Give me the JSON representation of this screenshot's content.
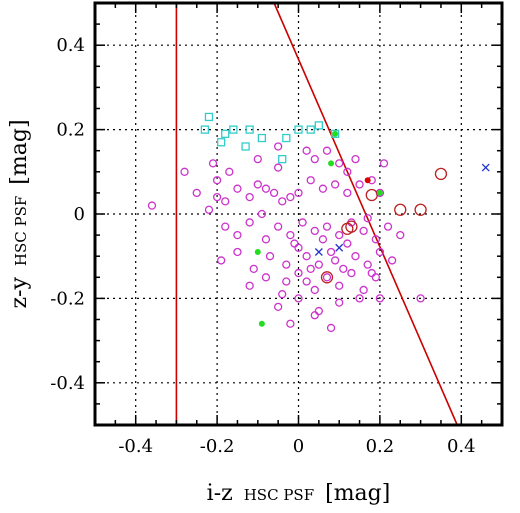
{
  "chart_data": {
    "type": "scatter",
    "xlabel": "i-z",
    "xlabel_sub": "HSC PSF",
    "xlabel_unit": "[mag]",
    "ylabel": "z-y",
    "ylabel_sub": "HSC PSF",
    "ylabel_unit": "[mag]",
    "xlim": [
      -0.5,
      0.5
    ],
    "ylim": [
      -0.5,
      0.5
    ],
    "xticks": [
      -0.4,
      -0.2,
      0,
      0.2,
      0.4
    ],
    "xtick_labels": [
      "-0.4",
      "-0.2",
      "0",
      "0.2",
      "0.4"
    ],
    "yticks": [
      -0.4,
      -0.2,
      0,
      0.2,
      0.4
    ],
    "ytick_labels": [
      "-0.4",
      "-0.2",
      "0",
      "0.2",
      "0.4"
    ],
    "grid": true,
    "lines": [
      {
        "color": "#cc0000",
        "points": [
          [
            -0.3,
            -0.5
          ],
          [
            -0.3,
            0.5
          ]
        ]
      },
      {
        "color": "#cc0000",
        "points": [
          [
            -0.06,
            0.5
          ],
          [
            0.39,
            -0.5
          ]
        ]
      }
    ],
    "series": [
      {
        "marker": "square",
        "color": "#33cccc",
        "size": 7,
        "points": [
          [
            -0.23,
            0.2
          ],
          [
            -0.22,
            0.23
          ],
          [
            -0.19,
            0.17
          ],
          [
            -0.18,
            0.19
          ],
          [
            -0.16,
            0.2
          ],
          [
            -0.13,
            0.16
          ],
          [
            -0.12,
            0.2
          ],
          [
            -0.09,
            0.18
          ],
          [
            -0.04,
            0.13
          ],
          [
            -0.03,
            0.18
          ],
          [
            0.0,
            0.2
          ],
          [
            0.03,
            0.2
          ],
          [
            0.05,
            0.21
          ],
          [
            0.09,
            0.19
          ]
        ]
      },
      {
        "marker": "open-circle",
        "color": "#cc33cc",
        "size": 7,
        "points": [
          [
            -0.36,
            0.02
          ],
          [
            -0.25,
            0.05
          ],
          [
            -0.22,
            0.01
          ],
          [
            -0.2,
            0.04
          ],
          [
            -0.18,
            0.03
          ],
          [
            -0.15,
            0.06
          ],
          [
            -0.12,
            0.04
          ],
          [
            -0.1,
            0.07
          ],
          [
            -0.08,
            0.06
          ],
          [
            -0.06,
            0.05
          ],
          [
            -0.04,
            0.03
          ],
          [
            -0.02,
            0.04
          ],
          [
            0.0,
            0.05
          ],
          [
            0.03,
            0.08
          ],
          [
            0.06,
            0.06
          ],
          [
            0.09,
            0.07
          ],
          [
            0.12,
            0.05
          ],
          [
            0.15,
            0.07
          ],
          [
            0.18,
            0.08
          ],
          [
            0.2,
            0.05
          ],
          [
            -0.28,
            0.1
          ],
          [
            -0.21,
            0.12
          ],
          [
            -0.17,
            0.1
          ],
          [
            -0.1,
            0.13
          ],
          [
            -0.05,
            0.11
          ],
          [
            0.04,
            0.13
          ],
          [
            0.07,
            0.15
          ],
          [
            0.1,
            0.12
          ],
          [
            0.14,
            0.13
          ],
          [
            0.21,
            0.12
          ],
          [
            -0.18,
            -0.03
          ],
          [
            -0.15,
            -0.05
          ],
          [
            -0.12,
            -0.02
          ],
          [
            -0.08,
            -0.06
          ],
          [
            -0.05,
            -0.03
          ],
          [
            -0.02,
            -0.05
          ],
          [
            0.01,
            -0.02
          ],
          [
            0.04,
            -0.04
          ],
          [
            0.07,
            -0.03
          ],
          [
            0.1,
            -0.05
          ],
          [
            0.13,
            -0.02
          ],
          [
            0.16,
            -0.04
          ],
          [
            0.19,
            -0.06
          ],
          [
            0.22,
            -0.03
          ],
          [
            0.25,
            -0.05
          ],
          [
            -0.19,
            -0.11
          ],
          [
            -0.15,
            -0.09
          ],
          [
            -0.11,
            -0.13
          ],
          [
            -0.07,
            -0.1
          ],
          [
            -0.03,
            -0.12
          ],
          [
            0.0,
            -0.08
          ],
          [
            0.02,
            -0.1
          ],
          [
            0.05,
            -0.12
          ],
          [
            0.08,
            -0.09
          ],
          [
            0.11,
            -0.13
          ],
          [
            0.14,
            -0.1
          ],
          [
            0.17,
            -0.12
          ],
          [
            0.2,
            -0.09
          ],
          [
            0.23,
            -0.11
          ],
          [
            -0.12,
            -0.17
          ],
          [
            -0.08,
            -0.15
          ],
          [
            -0.04,
            -0.19
          ],
          [
            0.0,
            -0.14
          ],
          [
            0.02,
            -0.16
          ],
          [
            0.04,
            -0.18
          ],
          [
            0.07,
            -0.15
          ],
          [
            0.1,
            -0.17
          ],
          [
            0.13,
            -0.14
          ],
          [
            0.16,
            -0.18
          ],
          [
            0.19,
            -0.15
          ],
          [
            -0.05,
            -0.22
          ],
          [
            0.0,
            -0.2
          ],
          [
            0.05,
            -0.23
          ],
          [
            0.1,
            -0.21
          ],
          [
            0.15,
            -0.2
          ],
          [
            0.2,
            -0.2
          ],
          [
            0.3,
            -0.2
          ],
          [
            -0.02,
            -0.26
          ],
          [
            0.04,
            -0.24
          ],
          [
            0.08,
            -0.27
          ],
          [
            -0.05,
            0.16
          ],
          [
            0.02,
            0.15
          ],
          [
            0.12,
            0.1
          ],
          [
            -0.2,
            0.08
          ],
          [
            0.17,
            -0.01
          ],
          [
            -0.09,
            0.0
          ],
          [
            0.06,
            -0.06
          ],
          [
            0.12,
            -0.07
          ],
          [
            -0.03,
            -0.16
          ],
          [
            0.09,
            -0.11
          ],
          [
            0.03,
            -0.13
          ],
          [
            -0.01,
            -0.07
          ],
          [
            0.18,
            -0.14
          ]
        ]
      },
      {
        "marker": "open-circle",
        "color": "#bb2222",
        "size": 11,
        "points": [
          [
            0.18,
            0.045
          ],
          [
            0.25,
            0.01
          ],
          [
            0.3,
            0.01
          ],
          [
            0.35,
            0.095
          ],
          [
            0.12,
            -0.035
          ],
          [
            0.07,
            -0.15
          ],
          [
            0.13,
            -0.03
          ]
        ]
      },
      {
        "marker": "filled-circle",
        "color": "#22dd22",
        "size": 6,
        "points": [
          [
            0.08,
            0.12
          ],
          [
            0.09,
            0.19
          ],
          [
            0.2,
            0.05
          ],
          [
            -0.1,
            -0.09
          ],
          [
            -0.09,
            -0.26
          ]
        ]
      },
      {
        "marker": "filled-circle",
        "color": "#dd0000",
        "size": 6,
        "points": [
          [
            0.17,
            0.08
          ]
        ]
      },
      {
        "marker": "cross",
        "color": "#2233cc",
        "size": 7,
        "points": [
          [
            0.46,
            0.11
          ],
          [
            0.05,
            -0.09
          ],
          [
            0.1,
            -0.08
          ]
        ]
      }
    ]
  }
}
